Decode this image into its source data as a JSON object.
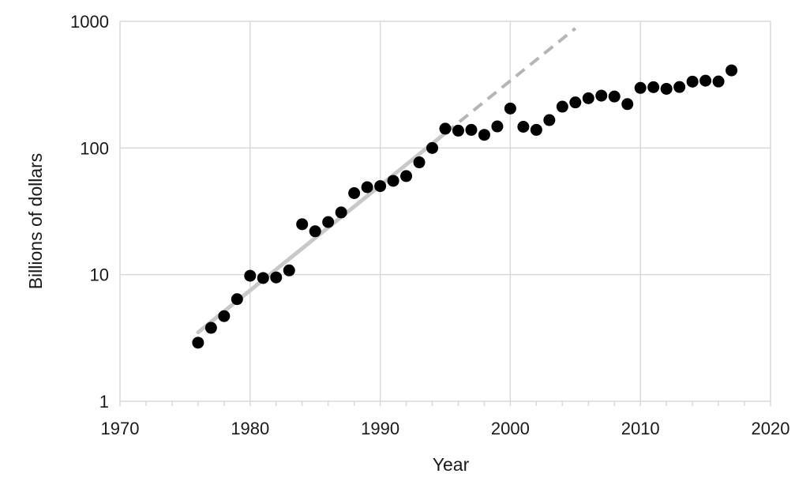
{
  "chart_data": {
    "type": "scatter",
    "title": "",
    "xlabel": "Year",
    "ylabel": "Billions of dollars",
    "xlim": [
      1970,
      2020
    ],
    "ylim": [
      1,
      1000
    ],
    "yscale": "log",
    "grid": true,
    "legend": "none",
    "x_ticks": [
      1970,
      1980,
      1990,
      2000,
      2010,
      2020
    ],
    "y_ticks": [
      1,
      10,
      100,
      1000
    ],
    "y_tick_labels": [
      "1",
      "10",
      "100",
      "1000"
    ],
    "series": [
      {
        "points": [
          [
            1976,
            2.9
          ],
          [
            1977,
            3.8
          ],
          [
            1978,
            4.7
          ],
          [
            1979,
            6.4
          ],
          [
            1980,
            9.8
          ],
          [
            1981,
            9.4
          ],
          [
            1982,
            9.5
          ],
          [
            1983,
            10.8
          ],
          [
            1984,
            25
          ],
          [
            1985,
            22
          ],
          [
            1986,
            26
          ],
          [
            1987,
            31
          ],
          [
            1988,
            44
          ],
          [
            1989,
            49
          ],
          [
            1990,
            50
          ],
          [
            1991,
            55
          ],
          [
            1992,
            60
          ],
          [
            1993,
            77
          ],
          [
            1994,
            100
          ],
          [
            1995,
            142
          ],
          [
            1996,
            137
          ],
          [
            1997,
            139
          ],
          [
            1998,
            127
          ],
          [
            1999,
            148
          ],
          [
            2000,
            205
          ],
          [
            2001,
            147
          ],
          [
            2002,
            139
          ],
          [
            2003,
            166
          ],
          [
            2004,
            212
          ],
          [
            2005,
            229
          ],
          [
            2006,
            247
          ],
          [
            2007,
            259
          ],
          [
            2008,
            255
          ],
          [
            2009,
            222
          ],
          [
            2010,
            298
          ],
          [
            2011,
            302
          ],
          [
            2012,
            293
          ],
          [
            2013,
            303
          ],
          [
            2014,
            334
          ],
          [
            2015,
            340
          ],
          [
            2016,
            335
          ],
          [
            2017,
            410
          ]
        ]
      }
    ],
    "trend_line": {
      "from": [
        1976,
        3.5
      ],
      "to": [
        2005,
        880
      ],
      "solid_until_x": 1995,
      "color": "#c8c8c8"
    },
    "colors": {
      "points": "#000000",
      "grid": "#d9d9d9",
      "trend_solid": "#c8c8c8",
      "trend_dashed": "#b5b5b5"
    }
  }
}
